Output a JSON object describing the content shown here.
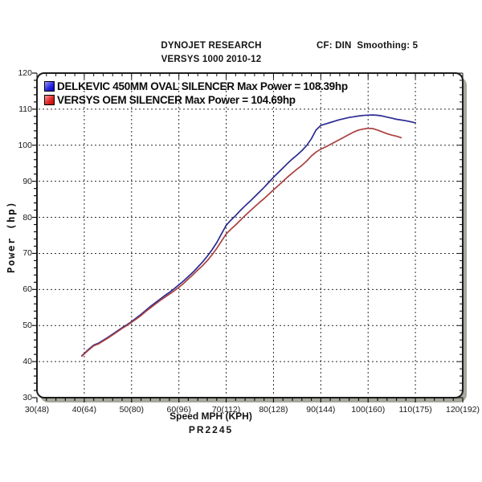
{
  "header": {
    "title": "DYNOJET RESEARCH",
    "subtitle": "VERSYS 1000 2010-12",
    "correction": "CF: DIN  Smoothing: 5"
  },
  "footer": {
    "xlabel": "Speed MPH (KPH)",
    "run_id": "PR2245"
  },
  "legend": [
    {
      "label": "DELKEVIC 450MM OVAL SILENCER Max Power = 108.39hp",
      "color": "#0000b8",
      "swatch": "blue-gradient-square"
    },
    {
      "label": "VERSYS OEM SILENCER Max Power = 104.69hp",
      "color": "#c00000",
      "swatch": "red-gradient-square"
    }
  ],
  "chart_data": {
    "type": "line",
    "title": "DYNOJET RESEARCH",
    "subtitle": "VERSYS 1000 2010-12",
    "xlabel": "Speed MPH (KPH)",
    "ylabel": "Power (hp)",
    "xlim": [
      30,
      120
    ],
    "ylim": [
      30,
      120
    ],
    "grid": "dashed-both-axes",
    "legend_position": "top-left-inside",
    "x_axis": {
      "minor_step": 2,
      "ticks": [
        {
          "value": 30,
          "label": "30(48)"
        },
        {
          "value": 40,
          "label": "40(64)"
        },
        {
          "value": 50,
          "label": "50(80)"
        },
        {
          "value": 60,
          "label": "60(96)"
        },
        {
          "value": 70,
          "label": "70(112)"
        },
        {
          "value": 80,
          "label": "80(128)"
        },
        {
          "value": 90,
          "label": "90(144)"
        },
        {
          "value": 100,
          "label": "100(160)"
        },
        {
          "value": 110,
          "label": "110(175)"
        },
        {
          "value": 120,
          "label": "120(192)"
        }
      ]
    },
    "y_axis": {
      "minor_step": 2,
      "ticks": [
        {
          "value": 30,
          "label": "30"
        },
        {
          "value": 40,
          "label": "40"
        },
        {
          "value": 50,
          "label": "50"
        },
        {
          "value": 60,
          "label": "60"
        },
        {
          "value": 70,
          "label": "70"
        },
        {
          "value": 80,
          "label": "80"
        },
        {
          "value": 90,
          "label": "90"
        },
        {
          "value": 100,
          "label": "100"
        },
        {
          "value": 110,
          "label": "110"
        },
        {
          "value": 120,
          "label": "120"
        }
      ]
    },
    "series": [
      {
        "name": "DELKEVIC 450MM OVAL SILENCER",
        "max_power_hp": 108.39,
        "color": "#2b2b92",
        "points": [
          [
            39.5,
            41.6
          ],
          [
            41,
            43.5
          ],
          [
            42,
            44.6
          ],
          [
            43,
            45.1
          ],
          [
            44,
            45.9
          ],
          [
            45,
            46.7
          ],
          [
            46,
            47.6
          ],
          [
            47,
            48.5
          ],
          [
            48,
            49.4
          ],
          [
            49,
            50.2
          ],
          [
            50,
            51.1
          ],
          [
            51,
            52.1
          ],
          [
            52,
            53.1
          ],
          [
            53,
            54.2
          ],
          [
            54,
            55.3
          ],
          [
            55,
            56.3
          ],
          [
            56,
            57.3
          ],
          [
            57,
            58.3
          ],
          [
            58,
            59.2
          ],
          [
            59,
            60.2
          ],
          [
            60,
            61.3
          ],
          [
            61,
            62.4
          ],
          [
            62,
            63.6
          ],
          [
            63,
            64.8
          ],
          [
            64,
            66.2
          ],
          [
            65,
            67.6
          ],
          [
            66,
            69.2
          ],
          [
            67,
            71.0
          ],
          [
            68,
            73.0
          ],
          [
            69,
            75.4
          ],
          [
            70,
            77.8
          ],
          [
            71,
            79.2
          ],
          [
            72,
            80.5
          ],
          [
            73,
            81.9
          ],
          [
            74,
            83.2
          ],
          [
            75,
            84.4
          ],
          [
            76,
            85.7
          ],
          [
            77,
            87.0
          ],
          [
            78,
            88.3
          ],
          [
            79,
            89.7
          ],
          [
            80,
            91.1
          ],
          [
            81,
            92.4
          ],
          [
            82,
            93.7
          ],
          [
            83,
            95.0
          ],
          [
            84,
            96.2
          ],
          [
            85,
            97.3
          ],
          [
            86,
            98.5
          ],
          [
            87,
            99.9
          ],
          [
            88,
            101.8
          ],
          [
            89,
            104.2
          ],
          [
            90,
            105.5
          ],
          [
            91,
            105.9
          ],
          [
            92,
            106.3
          ],
          [
            93,
            106.7
          ],
          [
            94,
            107.1
          ],
          [
            95,
            107.4
          ],
          [
            96,
            107.7
          ],
          [
            97,
            107.9
          ],
          [
            98,
            108.1
          ],
          [
            99,
            108.25
          ],
          [
            100,
            108.35
          ],
          [
            101,
            108.39
          ],
          [
            102,
            108.3
          ],
          [
            103,
            108.1
          ],
          [
            104,
            107.8
          ],
          [
            105,
            107.5
          ],
          [
            106,
            107.2
          ],
          [
            107,
            107.0
          ],
          [
            108,
            106.8
          ],
          [
            109,
            106.5
          ],
          [
            110,
            106.2
          ]
        ]
      },
      {
        "name": "VERSYS OEM SILENCER",
        "max_power_hp": 104.69,
        "color": "#aa4040",
        "points": [
          [
            39.5,
            41.5
          ],
          [
            41,
            43.3
          ],
          [
            42,
            44.4
          ],
          [
            43,
            44.9
          ],
          [
            44,
            45.7
          ],
          [
            45,
            46.5
          ],
          [
            46,
            47.4
          ],
          [
            47,
            48.3
          ],
          [
            48,
            49.2
          ],
          [
            49,
            50.0
          ],
          [
            50,
            50.9
          ],
          [
            51,
            51.8
          ],
          [
            52,
            52.8
          ],
          [
            53,
            53.9
          ],
          [
            54,
            54.9
          ],
          [
            55,
            55.9
          ],
          [
            56,
            56.9
          ],
          [
            57,
            57.8
          ],
          [
            58,
            58.7
          ],
          [
            59,
            59.6
          ],
          [
            60,
            60.6
          ],
          [
            61,
            61.7
          ],
          [
            62,
            62.9
          ],
          [
            63,
            64.1
          ],
          [
            64,
            65.4
          ],
          [
            65,
            66.6
          ],
          [
            66,
            68.0
          ],
          [
            67,
            69.6
          ],
          [
            68,
            71.4
          ],
          [
            69,
            73.4
          ],
          [
            70,
            75.4
          ],
          [
            71,
            76.7
          ],
          [
            72,
            77.9
          ],
          [
            73,
            79.2
          ],
          [
            74,
            80.5
          ],
          [
            75,
            81.7
          ],
          [
            76,
            82.9
          ],
          [
            77,
            84.1
          ],
          [
            78,
            85.2
          ],
          [
            79,
            86.4
          ],
          [
            80,
            87.6
          ],
          [
            81,
            88.8
          ],
          [
            82,
            90.0
          ],
          [
            83,
            91.2
          ],
          [
            84,
            92.3
          ],
          [
            85,
            93.4
          ],
          [
            86,
            94.4
          ],
          [
            87,
            95.6
          ],
          [
            88,
            97.0
          ],
          [
            89,
            98.1
          ],
          [
            90,
            98.9
          ],
          [
            91,
            99.5
          ],
          [
            92,
            100.2
          ],
          [
            93,
            100.9
          ],
          [
            94,
            101.6
          ],
          [
            95,
            102.3
          ],
          [
            96,
            103.0
          ],
          [
            97,
            103.7
          ],
          [
            98,
            104.2
          ],
          [
            99,
            104.5
          ],
          [
            100,
            104.69
          ],
          [
            101,
            104.6
          ],
          [
            102,
            104.2
          ],
          [
            103,
            103.7
          ],
          [
            104,
            103.2
          ],
          [
            105,
            102.8
          ],
          [
            106,
            102.5
          ],
          [
            107,
            102.1
          ]
        ]
      }
    ]
  }
}
